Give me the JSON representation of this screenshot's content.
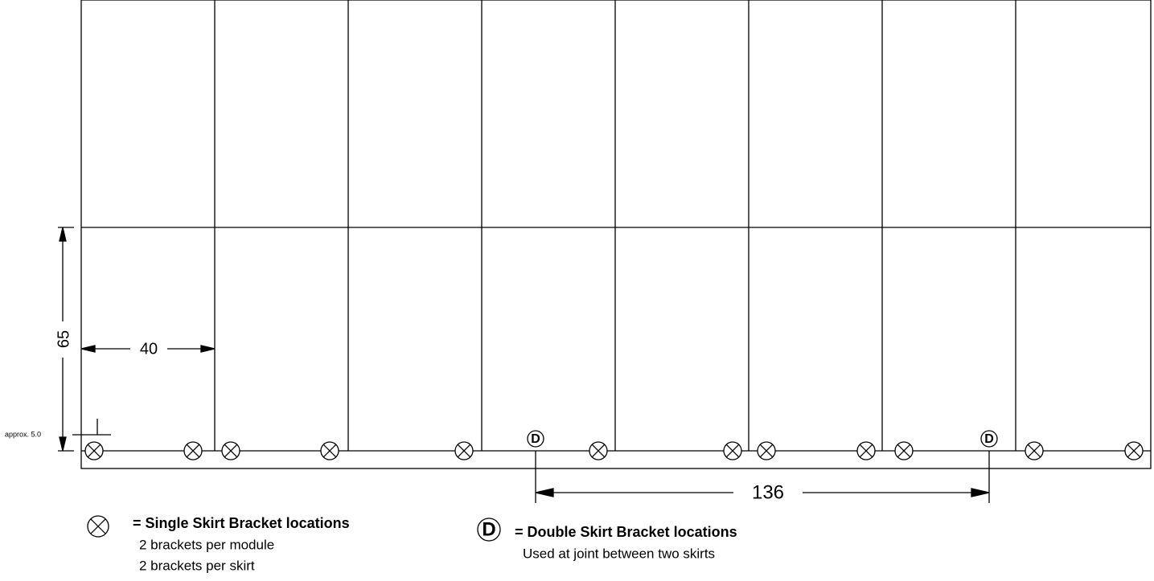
{
  "dimensions": {
    "module_height": "65",
    "module_width": "40",
    "offset": "approx. 5.0",
    "skirt_length": "136"
  },
  "marker": "D",
  "legend": {
    "single": {
      "title": "= Single Skirt Bracket locations",
      "notes": [
        "2 brackets per module",
        "2 brackets per skirt"
      ]
    },
    "double": {
      "title": "= Double Skirt Bracket locations",
      "notes": [
        "Used at joint between two skirts"
      ]
    }
  }
}
